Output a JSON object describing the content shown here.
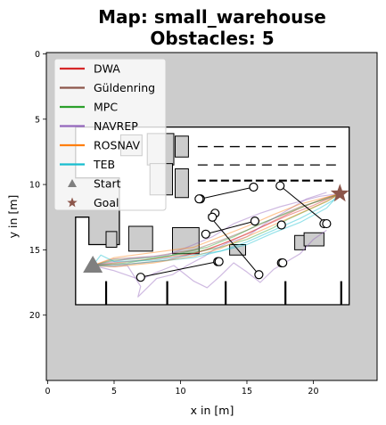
{
  "chart_data": {
    "type": "line",
    "title_lines": [
      "Map: small_warehouse",
      "Obstacles: 5"
    ],
    "xlabel": "x in [m]",
    "ylabel": "y in [m]",
    "xlim": [
      -0.1,
      24.8
    ],
    "ylim": [
      25.0,
      -0.1
    ],
    "x_ticks": [
      "0",
      "5",
      "10",
      "15",
      "20"
    ],
    "x_tick_values": [
      0,
      5,
      10,
      15,
      20
    ],
    "y_ticks": [
      "0",
      "5",
      "10",
      "15",
      "20"
    ],
    "y_tick_values": [
      0,
      5,
      10,
      15,
      20
    ],
    "grid": false,
    "legend_placement": "upper-left",
    "colors": {
      "background": "#cccccc",
      "free_space": "#ffffff",
      "wall": "#000000",
      "obstacle_fill": "#cccccc"
    },
    "legend": [
      {
        "label": "DWA",
        "color": "#d62728",
        "kind": "line"
      },
      {
        "label": "Güldenring",
        "color": "#8c564b",
        "kind": "line"
      },
      {
        "label": "MPC",
        "color": "#2ca02c",
        "kind": "line"
      },
      {
        "label": "NAVREP",
        "color": "#9467bd",
        "kind": "line"
      },
      {
        "label": "ROSNAV",
        "color": "#ff7f0e",
        "kind": "line"
      },
      {
        "label": "TEB",
        "color": "#17becf",
        "kind": "line"
      },
      {
        "label": "Start",
        "color": "#7f7f7f",
        "kind": "triangle"
      },
      {
        "label": "Goal",
        "color": "#8c564b",
        "kind": "star"
      }
    ],
    "start": [
      3.4,
      16.2
    ],
    "goal": [
      22.0,
      10.7
    ],
    "series": [
      {
        "name": "DWA",
        "color": "#d62728",
        "paths": [
          [
            [
              3.4,
              16.2
            ],
            [
              5,
              16.0
            ],
            [
              8,
              15.7
            ],
            [
              11,
              15.3
            ],
            [
              13,
              14.6
            ],
            [
              15,
              13.8
            ],
            [
              17,
              12.8
            ],
            [
              19,
              11.8
            ],
            [
              21,
              11.0
            ],
            [
              22,
              10.7
            ]
          ],
          [
            [
              3.4,
              16.2
            ],
            [
              6,
              16.1
            ],
            [
              9,
              15.8
            ],
            [
              12,
              15.0
            ],
            [
              14,
              14.2
            ],
            [
              16,
              13.3
            ],
            [
              18,
              12.4
            ],
            [
              20,
              11.6
            ],
            [
              22,
              10.7
            ]
          ]
        ]
      },
      {
        "name": "Güldenring",
        "color": "#8c564b",
        "paths": [
          [
            [
              3.4,
              16.2
            ],
            [
              5,
              15.7
            ],
            [
              8,
              15.5
            ],
            [
              11,
              15.0
            ],
            [
              13,
              14.3
            ],
            [
              15,
              13.5
            ],
            [
              17,
              12.6
            ],
            [
              19,
              11.7
            ],
            [
              21,
              11.1
            ],
            [
              22,
              10.7
            ]
          ]
        ]
      },
      {
        "name": "MPC",
        "color": "#2ca02c",
        "paths": [
          [
            [
              3.4,
              16.2
            ],
            [
              5,
              15.8
            ],
            [
              8,
              15.6
            ],
            [
              11,
              15.2
            ],
            [
              13,
              14.8
            ],
            [
              15,
              14.2
            ],
            [
              17,
              13.3
            ],
            [
              18,
              12.7
            ],
            [
              19.5,
              12.0
            ],
            [
              21,
              11.3
            ],
            [
              22,
              10.7
            ]
          ],
          [
            [
              3.4,
              16.2
            ],
            [
              6,
              16.0
            ],
            [
              9,
              15.5
            ],
            [
              12,
              14.8
            ],
            [
              14,
              14.0
            ],
            [
              16,
              13.0
            ],
            [
              18,
              12.2
            ],
            [
              20,
              11.4
            ],
            [
              22,
              10.7
            ]
          ]
        ]
      },
      {
        "name": "NAVREP",
        "color": "#9467bd",
        "paths": [
          [
            [
              3.4,
              16.2
            ],
            [
              5,
              16.6
            ],
            [
              7,
              17.3
            ],
            [
              8,
              16.8
            ],
            [
              9.5,
              16.2
            ],
            [
              11,
              17.4
            ],
            [
              12,
              17.9
            ],
            [
              13,
              17.0
            ],
            [
              14,
              16.0
            ],
            [
              15,
              16.7
            ],
            [
              16,
              17.5
            ],
            [
              17,
              16.5
            ],
            [
              18,
              15.9
            ],
            [
              19,
              15.3
            ],
            [
              20,
              14.2
            ],
            [
              21,
              13.5
            ]
          ],
          [
            [
              3.4,
              16.2
            ],
            [
              5,
              16.3
            ],
            [
              6,
              16.2
            ],
            [
              7,
              17.8
            ],
            [
              6.8,
              18.6
            ],
            [
              7.5,
              17.9
            ],
            [
              8.2,
              17.2
            ],
            [
              9.4,
              16.9
            ],
            [
              10.5,
              16.2
            ],
            [
              11.8,
              15.5
            ],
            [
              12.5,
              15.0
            ],
            [
              13.5,
              14.5
            ],
            [
              15,
              14.0
            ],
            [
              16.5,
              12.9
            ],
            [
              18,
              12.0
            ],
            [
              19.5,
              11.1
            ],
            [
              21,
              10.6
            ]
          ],
          [
            [
              3.4,
              16.2
            ],
            [
              6,
              15.7
            ],
            [
              9,
              15.4
            ],
            [
              11,
              14.6
            ],
            [
              12.4,
              14.0
            ],
            [
              14,
              13.0
            ],
            [
              16,
              12.2
            ],
            [
              17.5,
              11.7
            ],
            [
              19,
              11.3
            ],
            [
              20.5,
              10.9
            ],
            [
              22,
              10.7
            ]
          ]
        ]
      },
      {
        "name": "ROSNAV",
        "color": "#ff7f0e",
        "paths": [
          [
            [
              3.4,
              16.2
            ],
            [
              5,
              16.3
            ],
            [
              8,
              16.0
            ],
            [
              11,
              15.5
            ],
            [
              13,
              14.9
            ],
            [
              15,
              14.0
            ],
            [
              17,
              13.1
            ],
            [
              19,
              12.2
            ],
            [
              21,
              11.3
            ],
            [
              22,
              10.7
            ]
          ],
          [
            [
              3.4,
              16.2
            ],
            [
              5,
              15.6
            ],
            [
              8,
              15.2
            ],
            [
              11,
              14.8
            ],
            [
              13,
              14.0
            ],
            [
              15,
              13.2
            ],
            [
              17,
              12.3
            ],
            [
              19,
              11.5
            ],
            [
              22,
              10.7
            ]
          ]
        ]
      },
      {
        "name": "TEB",
        "color": "#17becf",
        "paths": [
          [
            [
              3.4,
              16.2
            ],
            [
              4,
              15.4
            ],
            [
              5,
              15.9
            ],
            [
              8,
              15.8
            ],
            [
              11,
              15.4
            ],
            [
              13,
              15.1
            ],
            [
              15,
              14.4
            ],
            [
              17,
              13.5
            ],
            [
              19,
              12.6
            ],
            [
              20.5,
              11.8
            ],
            [
              21.5,
              11.2
            ],
            [
              22,
              10.7
            ]
          ],
          [
            [
              3.4,
              16.2
            ],
            [
              5,
              16.2
            ],
            [
              8,
              15.9
            ],
            [
              11,
              15.6
            ],
            [
              13,
              15.1
            ],
            [
              15,
              14.6
            ],
            [
              17,
              13.7
            ],
            [
              19,
              12.9
            ],
            [
              21,
              11.8
            ],
            [
              22,
              10.7
            ]
          ]
        ]
      }
    ],
    "obstacles": [
      {
        "name": "pedestrian",
        "route": [
          [
            11.5,
            11.1
          ],
          [
            15.5,
            10.2
          ]
        ]
      },
      {
        "name": "pedestrian",
        "route": [
          [
            11.9,
            13.8
          ],
          [
            15.6,
            12.8
          ]
        ]
      },
      {
        "name": "pedestrian",
        "route": [
          [
            12.1,
            12.3
          ],
          [
            15.9,
            16.9
          ]
        ]
      },
      {
        "name": "pedestrian",
        "route": [
          [
            17.5,
            10.1
          ],
          [
            21.0,
            13.0
          ]
        ]
      },
      {
        "name": "pedestrian",
        "route": [
          [
            12.8,
            15.9
          ],
          [
            7.0,
            17.1
          ]
        ]
      }
    ],
    "obstacle_markers": [
      [
        11.5,
        11.1
      ],
      [
        11.4,
        11.1
      ],
      [
        12.6,
        12.2
      ],
      [
        12.4,
        12.5
      ],
      [
        11.9,
        13.8
      ],
      [
        15.5,
        10.2
      ],
      [
        15.6,
        12.8
      ],
      [
        12.8,
        15.9
      ],
      [
        12.9,
        15.9
      ],
      [
        7.0,
        17.1
      ],
      [
        15.9,
        16.9
      ],
      [
        17.5,
        10.1
      ],
      [
        17.6,
        13.1
      ],
      [
        17.6,
        16.0
      ],
      [
        17.7,
        16.0
      ],
      [
        20.8,
        13.0
      ],
      [
        21.0,
        13.0
      ]
    ],
    "map": {
      "walls_outline": [
        [
          2.1,
          5.6
        ],
        [
          22.7,
          5.6
        ],
        [
          22.7,
          19.2
        ],
        [
          2.1,
          19.2
        ],
        [
          2.1,
          12.5
        ],
        [
          3.1,
          12.5
        ],
        [
          3.1,
          14.6
        ],
        [
          5.4,
          14.6
        ],
        [
          5.4,
          9.5
        ],
        [
          2.1,
          9.5
        ],
        [
          2.1,
          5.6
        ]
      ],
      "dash_rows": [
        7.1,
        8.5,
        9.7
      ],
      "dash_xrange": [
        11.3,
        21.7
      ],
      "boxes": [
        [
          [
            4.4,
            13.6
          ],
          [
            5.2,
            13.6
          ],
          [
            5.2,
            14.8
          ],
          [
            4.4,
            14.8
          ]
        ],
        [
          [
            9.4,
            13.3
          ],
          [
            11.4,
            13.3
          ],
          [
            11.4,
            15.3
          ],
          [
            9.4,
            15.3
          ]
        ],
        [
          [
            18.6,
            13.9
          ],
          [
            19.4,
            13.9
          ],
          [
            19.4,
            15.0
          ],
          [
            18.6,
            15.0
          ]
        ],
        [
          [
            19.3,
            13.7
          ],
          [
            20.8,
            13.7
          ],
          [
            20.8,
            14.7
          ],
          [
            19.3,
            14.7
          ]
        ],
        [
          [
            13.7,
            14.6
          ],
          [
            14.9,
            14.6
          ],
          [
            14.9,
            15.4
          ],
          [
            13.7,
            15.4
          ]
        ],
        [
          [
            6.1,
            13.2
          ],
          [
            7.9,
            13.2
          ],
          [
            7.9,
            15.1
          ],
          [
            6.1,
            15.1
          ]
        ],
        [
          [
            5.5,
            6.2
          ],
          [
            7.1,
            6.2
          ],
          [
            7.1,
            7.8
          ],
          [
            5.5,
            7.8
          ]
        ],
        [
          [
            7.5,
            6.1
          ],
          [
            9.5,
            6.1
          ],
          [
            9.5,
            8.5
          ],
          [
            7.5,
            8.5
          ]
        ],
        [
          [
            7.7,
            8.4
          ],
          [
            9.4,
            8.4
          ],
          [
            9.4,
            10.8
          ],
          [
            7.7,
            10.8
          ]
        ],
        [
          [
            9.6,
            8.8
          ],
          [
            10.6,
            8.8
          ],
          [
            10.6,
            11.0
          ],
          [
            9.6,
            11.0
          ]
        ],
        [
          [
            9.6,
            6.3
          ],
          [
            10.6,
            6.3
          ],
          [
            10.6,
            7.9
          ],
          [
            9.6,
            7.9
          ]
        ]
      ],
      "shelf_lines": [
        [
          4.4,
          17.4,
          19.2
        ],
        [
          9.0,
          17.4,
          19.2
        ],
        [
          13.4,
          17.4,
          19.2
        ],
        [
          17.9,
          17.4,
          19.2
        ],
        [
          22.1,
          17.4,
          19.2
        ]
      ]
    }
  }
}
